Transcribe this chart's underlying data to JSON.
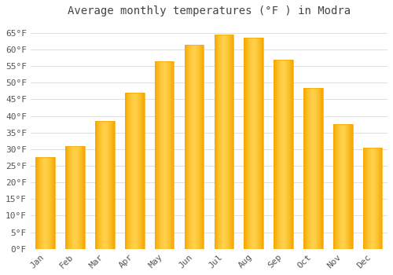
{
  "title": "Average monthly temperatures (°F ) in Modra",
  "months": [
    "Jan",
    "Feb",
    "Mar",
    "Apr",
    "May",
    "Jun",
    "Jul",
    "Aug",
    "Sep",
    "Oct",
    "Nov",
    "Dec"
  ],
  "values": [
    27.5,
    31.0,
    38.5,
    47.0,
    56.5,
    61.5,
    64.5,
    63.5,
    57.0,
    48.5,
    37.5,
    30.5
  ],
  "bar_color_center": "#FFD04A",
  "bar_color_edge": "#F5A800",
  "background_color": "#FFFFFF",
  "grid_color": "#E0E0E0",
  "text_color": "#555555",
  "title_color": "#444444",
  "ylim": [
    0,
    68
  ],
  "yticks": [
    0,
    5,
    10,
    15,
    20,
    25,
    30,
    35,
    40,
    45,
    50,
    55,
    60,
    65
  ],
  "title_fontsize": 10,
  "tick_fontsize": 8,
  "font_family": "monospace",
  "bar_width": 0.65
}
